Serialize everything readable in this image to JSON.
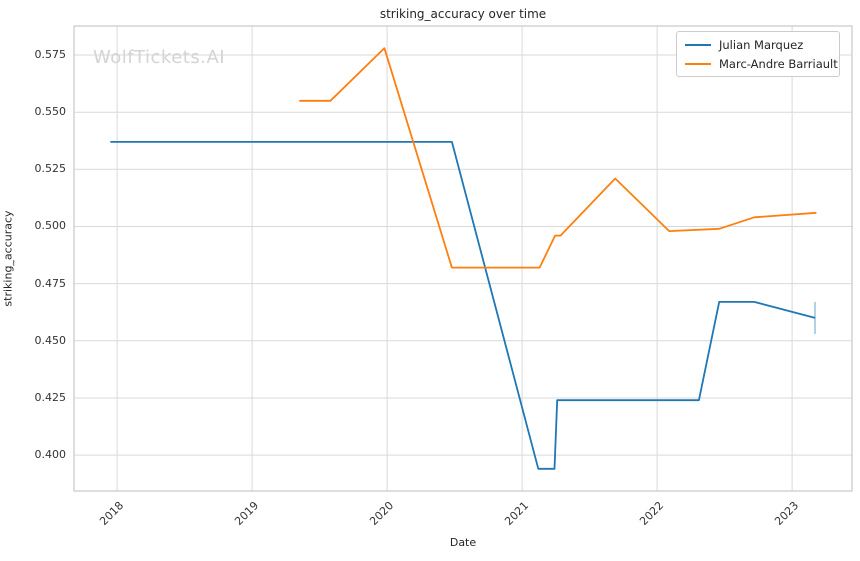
{
  "watermark": "WolfTickets.AI",
  "chart_data": {
    "type": "line",
    "title": "striking_accuracy over time",
    "xlabel": "Date",
    "ylabel": "striking_accuracy",
    "grid": true,
    "legend_position": "upper right",
    "xlim": [
      2017.681,
      2023.444
    ],
    "ylim": [
      0.3843,
      0.5877
    ],
    "x_ticks": [
      2018,
      2019,
      2020,
      2021,
      2022,
      2023
    ],
    "y_ticks": [
      0.4,
      0.425,
      0.45,
      0.475,
      0.5,
      0.525,
      0.55,
      0.575
    ],
    "colors": {
      "grid": "#d9d9d9",
      "frame": "#c9c9c9",
      "text": "#262626",
      "watermark": "#d4d4d4"
    },
    "series": [
      {
        "name": "Julian Marquez",
        "color": "#1f77b4",
        "points": [
          [
            2017.95,
            0.537
          ],
          [
            2020.48,
            0.537
          ],
          [
            2021.12,
            0.394
          ],
          [
            2021.24,
            0.394
          ],
          [
            2021.26,
            0.424
          ],
          [
            2022.31,
            0.424
          ],
          [
            2022.46,
            0.467
          ],
          [
            2022.72,
            0.467
          ],
          [
            2023.17,
            0.46
          ]
        ],
        "end_error_bar": {
          "x": 2023.17,
          "y_low": 0.453,
          "y_high": 0.467
        }
      },
      {
        "name": "Marc-Andre Barriault",
        "color": "#ff7f0e",
        "points": [
          [
            2019.35,
            0.555
          ],
          [
            2019.58,
            0.555
          ],
          [
            2019.98,
            0.578
          ],
          [
            2020.48,
            0.482
          ],
          [
            2021.13,
            0.482
          ],
          [
            2021.245,
            0.496
          ],
          [
            2021.285,
            0.496
          ],
          [
            2021.69,
            0.521
          ],
          [
            2022.09,
            0.498
          ],
          [
            2022.46,
            0.499
          ],
          [
            2022.72,
            0.504
          ],
          [
            2023.18,
            0.506
          ]
        ],
        "end_error_bar": null
      }
    ]
  }
}
